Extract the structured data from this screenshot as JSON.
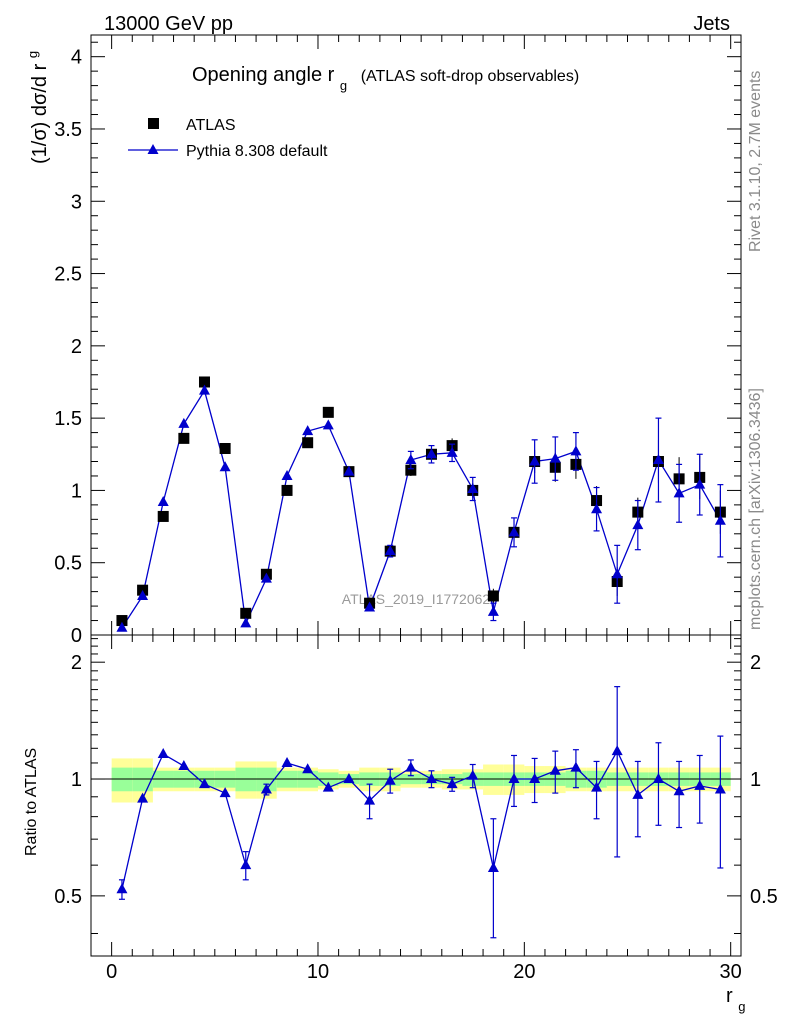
{
  "header": {
    "left": "13000 GeV pp",
    "right": "Jets"
  },
  "side_labels": {
    "rivet": "Rivet 3.1.10,  2.7M events",
    "mcplots": "mcplots.cern.ch [arXiv:1306.3436]"
  },
  "watermark": "ATLAS_2019_I1772062",
  "colors": {
    "mc": "#0000cc",
    "data": "#000000",
    "band_inner": "#99ff99",
    "band_outer": "#ffff99"
  },
  "chart_data": [
    {
      "type": "scatter",
      "title": "Opening angle r",
      "title_sub": "g",
      "title_note": "(ATLAS soft-drop observables)",
      "ylabel": "(1/σ) dσ/d r",
      "ylabel_sub": "g",
      "xlabel": "r",
      "xlabel_sub": "g",
      "xlim": [
        -1,
        30.5
      ],
      "ylim": [
        0,
        4.15
      ],
      "x_ticks": [
        0,
        10,
        20,
        30
      ],
      "x_tick_labels": [
        "0",
        "10",
        "20",
        "30"
      ],
      "y_ticks": [
        0,
        0.5,
        1,
        1.5,
        2,
        2.5,
        3,
        3.5,
        4
      ],
      "y_tick_labels": [
        "0",
        "0.5",
        "1",
        "1.5",
        "2",
        "2.5",
        "3",
        "3.5",
        "4"
      ],
      "legend": [
        "ATLAS",
        "Pythia 8.308 default"
      ],
      "legend_position": "top-left",
      "x": [
        0.5,
        1.5,
        2.5,
        3.5,
        4.5,
        5.5,
        6.5,
        7.5,
        8.5,
        9.5,
        10.5,
        11.5,
        12.5,
        13.5,
        14.5,
        15.5,
        16.5,
        17.5,
        18.5,
        19.5,
        20.5,
        21.5,
        22.5,
        23.5,
        24.5,
        25.5,
        26.5,
        27.5,
        28.5,
        29.5
      ],
      "series": [
        {
          "name": "ATLAS",
          "marker": "square",
          "values": [
            0.1,
            0.31,
            0.82,
            1.36,
            1.75,
            1.29,
            0.15,
            0.42,
            1.0,
            1.33,
            1.54,
            1.13,
            0.22,
            0.58,
            1.14,
            1.25,
            1.31,
            1.0,
            0.27,
            0.71,
            1.2,
            1.16,
            1.18,
            0.93,
            0.37,
            0.85,
            1.2,
            1.08,
            1.09,
            0.85
          ],
          "errors": [
            0.01,
            0.02,
            0.03,
            0.03,
            0.03,
            0.03,
            0.02,
            0.02,
            0.03,
            0.03,
            0.03,
            0.03,
            0.03,
            0.04,
            0.04,
            0.04,
            0.05,
            0.05,
            0.05,
            0.06,
            0.08,
            0.1,
            0.1,
            0.1,
            0.1,
            0.1,
            0.15,
            0.15,
            0.15,
            0.15
          ]
        },
        {
          "name": "Pythia 8.308 default",
          "marker": "triangle",
          "values": [
            0.05,
            0.27,
            0.92,
            1.46,
            1.69,
            1.16,
            0.08,
            0.39,
            1.1,
            1.41,
            1.45,
            1.13,
            0.19,
            0.58,
            1.21,
            1.25,
            1.26,
            1.01,
            0.16,
            0.71,
            1.2,
            1.22,
            1.27,
            0.87,
            0.42,
            0.76,
            1.21,
            0.98,
            1.04,
            0.79
          ],
          "errors": [
            0.01,
            0.01,
            0.02,
            0.02,
            0.02,
            0.02,
            0.01,
            0.02,
            0.02,
            0.02,
            0.02,
            0.02,
            0.03,
            0.04,
            0.06,
            0.06,
            0.06,
            0.08,
            0.06,
            0.1,
            0.15,
            0.15,
            0.13,
            0.15,
            0.2,
            0.17,
            0.29,
            0.2,
            0.21,
            0.25
          ]
        }
      ]
    },
    {
      "type": "line",
      "title": "",
      "ylabel": "Ratio to ATLAS",
      "xlabel": "r",
      "xlabel_sub": "g",
      "xlim": [
        -1,
        30.5
      ],
      "ylim": [
        0.35,
        2.35
      ],
      "x_ticks": [
        0,
        10,
        20,
        30
      ],
      "x_tick_labels": [
        "0",
        "10",
        "20",
        "30"
      ],
      "y_ticks": [
        0.5,
        1,
        2
      ],
      "y_tick_labels": [
        "0.5",
        "1",
        "2"
      ],
      "reference_line": 1,
      "x": [
        0.5,
        1.5,
        2.5,
        3.5,
        4.5,
        5.5,
        6.5,
        7.5,
        8.5,
        9.5,
        10.5,
        11.5,
        12.5,
        13.5,
        14.5,
        15.5,
        16.5,
        17.5,
        18.5,
        19.5,
        20.5,
        21.5,
        22.5,
        23.5,
        24.5,
        25.5,
        26.5,
        27.5,
        28.5,
        29.5
      ],
      "series": [
        {
          "name": "Pythia 8.308 default / ATLAS",
          "values": [
            0.52,
            0.89,
            1.16,
            1.08,
            0.97,
            0.92,
            0.6,
            0.94,
            1.1,
            1.06,
            0.95,
            1.0,
            0.88,
            0.99,
            1.07,
            1.0,
            0.97,
            1.02,
            0.59,
            1.0,
            1.0,
            1.05,
            1.07,
            0.95,
            1.18,
            0.91,
            1.0,
            0.93,
            0.96,
            0.94
          ],
          "errors": [
            0.03,
            0.02,
            0.02,
            0.02,
            0.02,
            0.02,
            0.05,
            0.03,
            0.02,
            0.02,
            0.02,
            0.02,
            0.09,
            0.07,
            0.05,
            0.05,
            0.04,
            0.07,
            0.2,
            0.15,
            0.13,
            0.13,
            0.12,
            0.16,
            0.55,
            0.2,
            0.24,
            0.18,
            0.19,
            0.35
          ]
        }
      ],
      "band_inner": [
        0.07,
        0.07,
        0.05,
        0.05,
        0.05,
        0.05,
        0.07,
        0.07,
        0.05,
        0.05,
        0.04,
        0.03,
        0.04,
        0.04,
        0.03,
        0.03,
        0.03,
        0.04,
        0.04,
        0.04,
        0.04,
        0.04,
        0.05,
        0.05,
        0.04,
        0.04,
        0.04,
        0.04,
        0.04,
        0.04
      ],
      "band_outer": [
        0.13,
        0.13,
        0.07,
        0.07,
        0.07,
        0.07,
        0.11,
        0.11,
        0.07,
        0.07,
        0.06,
        0.05,
        0.07,
        0.07,
        0.05,
        0.05,
        0.06,
        0.06,
        0.09,
        0.09,
        0.08,
        0.08,
        0.07,
        0.07,
        0.07,
        0.07,
        0.07,
        0.07,
        0.07,
        0.07
      ]
    }
  ]
}
